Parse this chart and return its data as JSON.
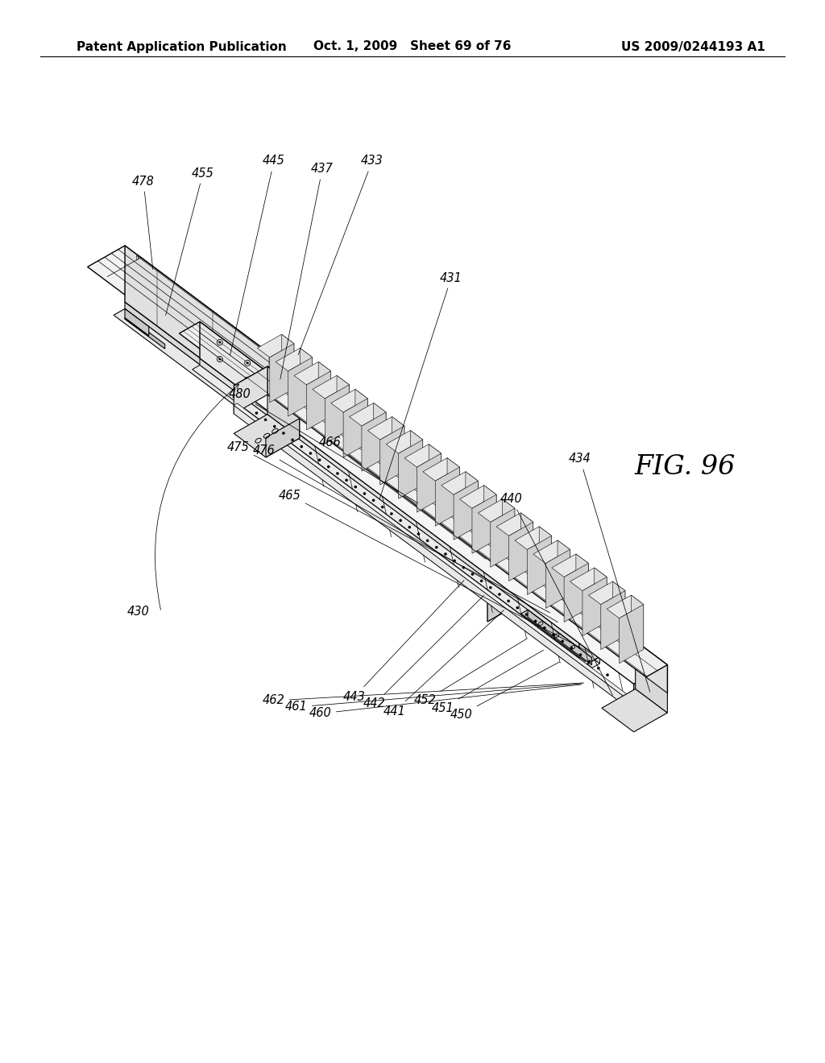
{
  "background_color": "#ffffff",
  "header_left": "Patent Application Publication",
  "header_center": "Oct. 1, 2009   Sheet 69 of 76",
  "header_right": "US 2009/0244193 A1",
  "figure_label": "FIG. 96",
  "header_fontsize": 11,
  "figure_label_fontsize": 24,
  "label_fontsize": 10.5
}
